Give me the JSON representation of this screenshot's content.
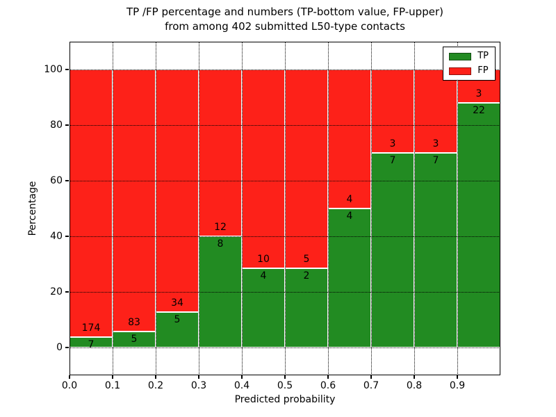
{
  "chart_data": {
    "type": "bar",
    "subtype": "stacked_percentage",
    "title_line1": "TP /FP percentage and numbers (TP-bottom value, FP-upper)",
    "title_line2": "from among 402 submitted L50-type contacts",
    "xlabel": "Predicted probability",
    "ylabel": "Percentage",
    "xlim": [
      0.0,
      1.0
    ],
    "ylim": [
      -10,
      110
    ],
    "grid": true,
    "yticks": [
      0,
      20,
      40,
      60,
      80,
      100
    ],
    "xtick_labels": [
      "0.0",
      "0.1",
      "0.2",
      "0.3",
      "0.4",
      "0.5",
      "0.6",
      "0.7",
      "0.8",
      "0.9"
    ],
    "legend": [
      {
        "label": "TP",
        "color": "#228b22"
      },
      {
        "label": "FP",
        "color": "#fd2119"
      }
    ],
    "legend_position": "upper right",
    "bins": [
      {
        "range": [
          0.0,
          0.1
        ],
        "tp": 7,
        "fp": 174
      },
      {
        "range": [
          0.1,
          0.2
        ],
        "tp": 5,
        "fp": 83
      },
      {
        "range": [
          0.2,
          0.3
        ],
        "tp": 5,
        "fp": 34
      },
      {
        "range": [
          0.3,
          0.4
        ],
        "tp": 8,
        "fp": 12
      },
      {
        "range": [
          0.4,
          0.5
        ],
        "tp": 4,
        "fp": 10
      },
      {
        "range": [
          0.5,
          0.6
        ],
        "tp": 2,
        "fp": 5
      },
      {
        "range": [
          0.6,
          0.7
        ],
        "tp": 4,
        "fp": 4
      },
      {
        "range": [
          0.7,
          0.8
        ],
        "tp": 7,
        "fp": 3
      },
      {
        "range": [
          0.8,
          0.9
        ],
        "tp": 7,
        "fp": 3
      },
      {
        "range": [
          0.9,
          1.0
        ],
        "tp": 22,
        "fp": 3
      }
    ]
  }
}
